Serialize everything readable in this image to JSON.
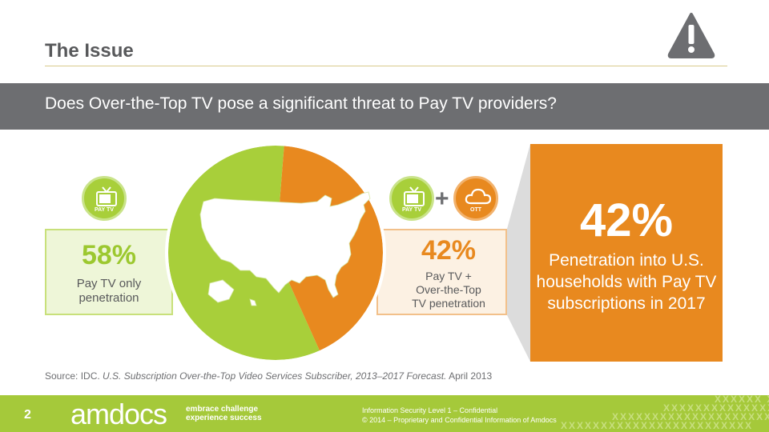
{
  "header": {
    "title": "The Issue",
    "question": "Does Over-the-Top TV pose a significant threat to Pay TV providers?"
  },
  "left_stat": {
    "badge_label": "PAY TV",
    "percent": "58%",
    "description": "Pay TV only penetration"
  },
  "mid_stat": {
    "badge_paytv_label": "PAY TV",
    "badge_ott_label": "OTT",
    "plus": "+",
    "percent": "42%",
    "description_line1": "Pay TV +",
    "description_line2": "Over-the-Top",
    "description_line3": "TV penetration"
  },
  "highlight": {
    "percent": "42%",
    "description": "Penetration into U.S. households with Pay TV subscriptions in 2017"
  },
  "pie": {
    "pay_tv_only_share": 58,
    "ott_share": 42,
    "colors": {
      "pay_tv": "#a8cf3a",
      "ott": "#e8891f"
    }
  },
  "source": {
    "prefix": "Source: IDC.",
    "title": "U.S. Subscription Over-the-Top Video Services Subscriber, 2013–2017 Forecast.",
    "date": "April 2013"
  },
  "footer": {
    "page_number": "2",
    "logo": "amdocs",
    "tagline_line1": "embrace challenge",
    "tagline_line2": "experience success",
    "legal_line1": "Information Security Level 1 – Confidential",
    "legal_line2": "© 2014 – Proprietary and Confidential Information of Amdocs"
  },
  "icons": {
    "warning": "warning-triangle-icon",
    "tv": "tv-icon",
    "cloud": "cloud-icon"
  },
  "colors": {
    "green": "#a5c93a",
    "orange": "#e8891f",
    "gray": "#6d6e71"
  }
}
